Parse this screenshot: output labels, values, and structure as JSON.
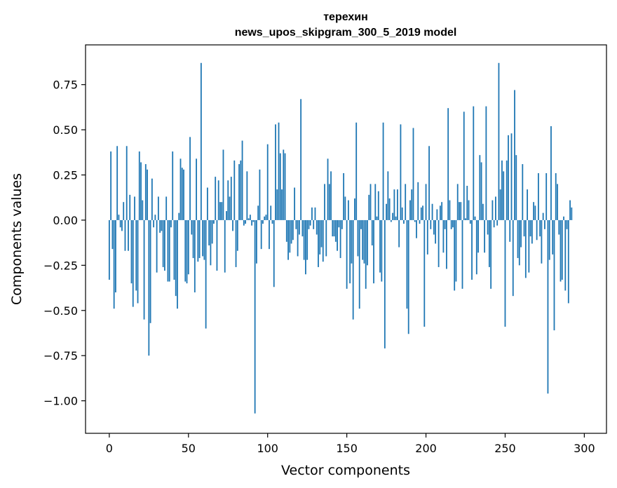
{
  "chart_data": {
    "type": "bar",
    "title_line1": "терехин",
    "title_line2": "news_upos_skipgram_300_5_2019 model",
    "xlabel": "Vector components",
    "ylabel": "Components values",
    "xlim": [
      -15,
      314
    ],
    "ylim": [
      -1.18,
      0.97
    ],
    "x_ticks": [
      0,
      50,
      100,
      150,
      200,
      250,
      300
    ],
    "x_tick_labels": [
      "0",
      "50",
      "100",
      "150",
      "200",
      "250",
      "300"
    ],
    "y_ticks": [
      0.75,
      0.5,
      0.25,
      0.0,
      -0.25,
      -0.5,
      -0.75,
      -1.0
    ],
    "y_tick_labels": [
      "0.75",
      "0.50",
      "0.25",
      "0.00",
      "−0.25",
      "−0.50",
      "−0.75",
      "−1.00"
    ],
    "bar_color": "#1f77b4",
    "values": [
      -0.33,
      0.38,
      -0.16,
      -0.49,
      -0.4,
      0.41,
      0.03,
      -0.04,
      -0.06,
      0.1,
      -0.17,
      0.41,
      -0.17,
      0.14,
      -0.35,
      -0.48,
      0.13,
      -0.39,
      -0.46,
      0.38,
      0.32,
      0.11,
      -0.55,
      0.31,
      0.28,
      -0.75,
      -0.57,
      0.23,
      -0.04,
      0.03,
      -0.29,
      0.13,
      -0.07,
      -0.06,
      -0.26,
      -0.28,
      0.13,
      -0.34,
      -0.34,
      -0.04,
      0.38,
      -0.33,
      -0.42,
      -0.49,
      0.04,
      0.34,
      0.29,
      0.28,
      -0.34,
      -0.35,
      -0.3,
      0.46,
      -0.08,
      -0.21,
      -0.4,
      0.34,
      -0.23,
      -0.21,
      0.87,
      -0.2,
      -0.22,
      -0.6,
      0.18,
      -0.14,
      -0.25,
      -0.13,
      -0.02,
      0.24,
      -0.28,
      0.22,
      0.1,
      0.1,
      0.39,
      -0.29,
      0.05,
      0.22,
      0.13,
      0.24,
      -0.06,
      0.33,
      -0.26,
      -0.17,
      0.31,
      0.33,
      0.44,
      -0.03,
      -0.02,
      0.27,
      0.01,
      0.03,
      -0.03,
      -0.01,
      -1.07,
      -0.24,
      0.08,
      0.28,
      -0.16,
      -0.02,
      0.02,
      0.03,
      0.42,
      -0.16,
      0.08,
      -0.02,
      -0.37,
      0.53,
      0.17,
      0.54,
      0.37,
      0.17,
      0.39,
      0.37,
      -0.12,
      -0.22,
      -0.18,
      -0.13,
      -0.11,
      0.18,
      -0.05,
      -0.2,
      -0.08,
      0.67,
      -0.09,
      -0.22,
      -0.3,
      -0.22,
      -0.05,
      -0.03,
      0.07,
      -0.05,
      0.07,
      -0.08,
      -0.26,
      -0.19,
      -0.15,
      -0.23,
      0.2,
      -0.2,
      0.34,
      0.2,
      0.27,
      -0.09,
      -0.09,
      -0.12,
      -0.17,
      -0.04,
      -0.21,
      -0.05,
      0.26,
      0.13,
      -0.38,
      0.11,
      -0.35,
      -0.24,
      -0.55,
      0.12,
      0.54,
      -0.2,
      -0.49,
      -0.05,
      -0.22,
      -0.24,
      -0.38,
      -0.25,
      0.14,
      0.2,
      -0.14,
      -0.35,
      0.2,
      0.02,
      0.16,
      -0.29,
      -0.34,
      0.54,
      -0.71,
      0.09,
      0.27,
      0.12,
      -0.01,
      0.04,
      0.17,
      0.02,
      0.17,
      -0.15,
      0.53,
      0.07,
      -0.02,
      0.2,
      -0.49,
      -0.63,
      0.11,
      0.17,
      0.51,
      -0.01,
      -0.1,
      0.21,
      -0.02,
      0.07,
      0.08,
      -0.59,
      0.2,
      -0.19,
      0.41,
      -0.05,
      0.09,
      -0.08,
      -0.13,
      0.06,
      -0.26,
      0.08,
      0.1,
      -0.18,
      -0.05,
      -0.27,
      0.62,
      0.11,
      -0.05,
      -0.04,
      -0.39,
      -0.34,
      0.2,
      0.1,
      0.1,
      -0.38,
      0.6,
      0.01,
      0.19,
      0.11,
      -0.02,
      -0.33,
      0.63,
      0.02,
      -0.3,
      -0.18,
      0.36,
      0.32,
      0.09,
      -0.18,
      0.63,
      -0.08,
      -0.26,
      -0.38,
      0.11,
      -0.04,
      0.13,
      -0.03,
      0.87,
      0.17,
      0.33,
      0.27,
      -0.59,
      0.33,
      0.47,
      -0.12,
      0.48,
      -0.42,
      0.72,
      0.36,
      -0.21,
      -0.25,
      -0.15,
      0.31,
      -0.09,
      -0.32,
      0.17,
      -0.29,
      -0.09,
      -0.13,
      0.1,
      0.08,
      -0.11,
      0.26,
      -0.09,
      -0.24,
      0.04,
      -0.05,
      0.26,
      -0.96,
      -0.22,
      0.52,
      -0.19,
      -0.61,
      0.26,
      0.2,
      -0.08,
      -0.34,
      -0.33,
      0.02,
      -0.39,
      -0.05,
      -0.46,
      0.11,
      0.07
    ]
  }
}
